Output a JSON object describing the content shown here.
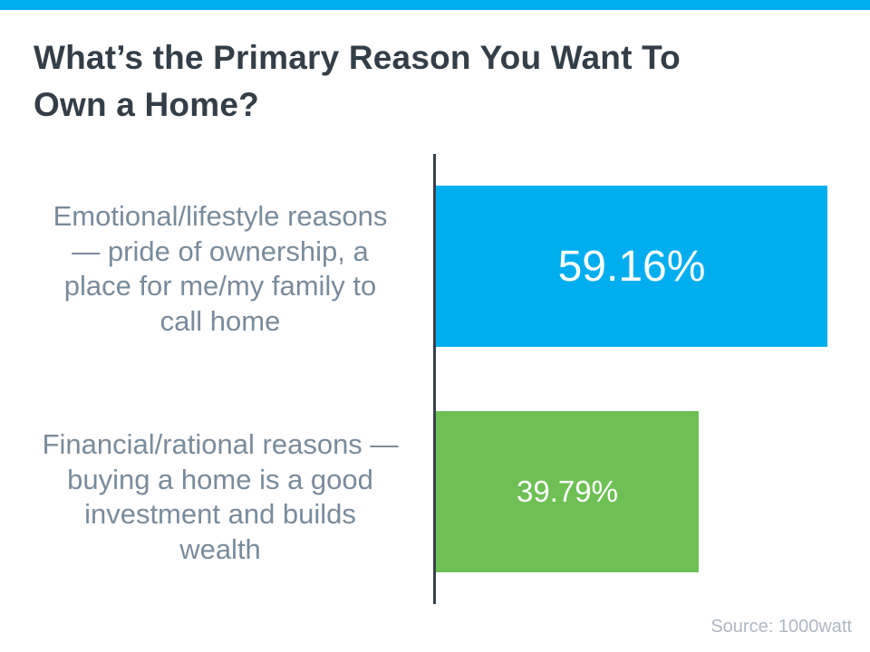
{
  "slide": {
    "background_color": "#FFFFFF",
    "accent_bar_color": "#00AEEF"
  },
  "title": {
    "text": "What’s the Primary Reason You Want To Own a Home?",
    "line1": "What’s the Primary Reason You Want To",
    "line2": "Own a Home?",
    "color": "#333E48"
  },
  "chart_data": {
    "type": "bar",
    "orientation": "horizontal",
    "title": "What’s the Primary Reason You Want To Own a Home?",
    "categories": [
      "Emotional/lifestyle reasons — pride of ownership, a place for me/my family to call home",
      "Financial/rational reasons — buying a home is a good investment and builds wealth"
    ],
    "category_lines": [
      [
        "Emotional/lifestyle reasons",
        "— pride of ownership, a",
        "place for me/my family to",
        "call home"
      ],
      [
        "Financial/rational reasons —",
        "buying a home is a good",
        "investment and builds",
        "wealth"
      ]
    ],
    "values": [
      59.16,
      39.79
    ],
    "value_labels": [
      "59.16%",
      "39.79%"
    ],
    "series_colors": [
      "#00AEEF",
      "#6EC054"
    ],
    "value_label_color": "#FFFFFF",
    "category_label_color": "#7A8B9B",
    "axis_line_color": "#37424C",
    "xlim": [
      0,
      63
    ],
    "grid": false,
    "legend": false
  },
  "source": {
    "text": "Source: 1000watt",
    "color": "#AEB8C2"
  }
}
